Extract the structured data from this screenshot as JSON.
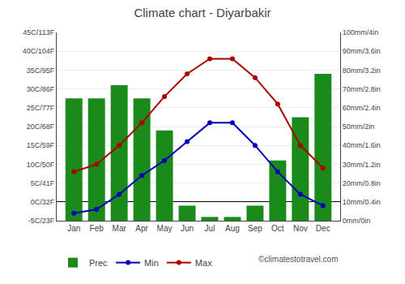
{
  "chart_data": {
    "type": "combo",
    "title": "Climate chart - Diyarbakir",
    "categories": [
      "Jan",
      "Feb",
      "Mar",
      "Apr",
      "May",
      "Jun",
      "Jul",
      "Aug",
      "Sep",
      "Oct",
      "Nov",
      "Dec"
    ],
    "series": [
      {
        "name": "Prec",
        "type": "bar",
        "axis": "y2",
        "color": "#1a8a1a",
        "values": [
          65,
          65,
          72,
          65,
          48,
          8,
          2,
          2,
          8,
          32,
          55,
          78
        ]
      },
      {
        "name": "Min",
        "type": "line",
        "marker": "circle",
        "line_style": "solid",
        "color": "#0000bb",
        "values": [
          -3,
          -2,
          2,
          7,
          11,
          16,
          21,
          21,
          15,
          8,
          2,
          -1
        ]
      },
      {
        "name": "Max",
        "type": "line",
        "marker": "circle",
        "line_style": "solid",
        "color": "#aa0000",
        "values": [
          8,
          10,
          15,
          21,
          28,
          34,
          38,
          38,
          33,
          26,
          15,
          9
        ]
      }
    ],
    "ylim": [
      -5,
      45
    ],
    "yticks": [
      {
        "value": -5,
        "label": "-5C/23F"
      },
      {
        "value": 0,
        "label": "0C/32F"
      },
      {
        "value": 5,
        "label": "5C/41F"
      },
      {
        "value": 10,
        "label": "10C/50F"
      },
      {
        "value": 15,
        "label": "15C/59F"
      },
      {
        "value": 20,
        "label": "20C/68F"
      },
      {
        "value": 25,
        "label": "25C/77F"
      },
      {
        "value": 30,
        "label": "30C/86F"
      },
      {
        "value": 35,
        "label": "35C/95F"
      },
      {
        "value": 40,
        "label": "40C/104F"
      },
      {
        "value": 45,
        "label": "45C/113F"
      }
    ],
    "y2lim": [
      0,
      100
    ],
    "y2ticks": [
      {
        "value": 0,
        "label": "0mm/0in"
      },
      {
        "value": 10,
        "label": "10mm/0.4in"
      },
      {
        "value": 20,
        "label": "20mm/0.8in"
      },
      {
        "value": 30,
        "label": "30mm/1.2in"
      },
      {
        "value": 40,
        "label": "40mm/1.6in"
      },
      {
        "value": 50,
        "label": "50mm/2in"
      },
      {
        "value": 60,
        "label": "60mm/2.4in"
      },
      {
        "value": 70,
        "label": "70mm/2.8in"
      },
      {
        "value": 80,
        "label": "80mm/3.2in"
      },
      {
        "value": 90,
        "label": "90mm/3.6in"
      },
      {
        "value": 100,
        "label": "100mm/4in"
      }
    ],
    "grid": true,
    "legend": "bottom",
    "annotations": [
      "©climatestotravel.com"
    ]
  }
}
